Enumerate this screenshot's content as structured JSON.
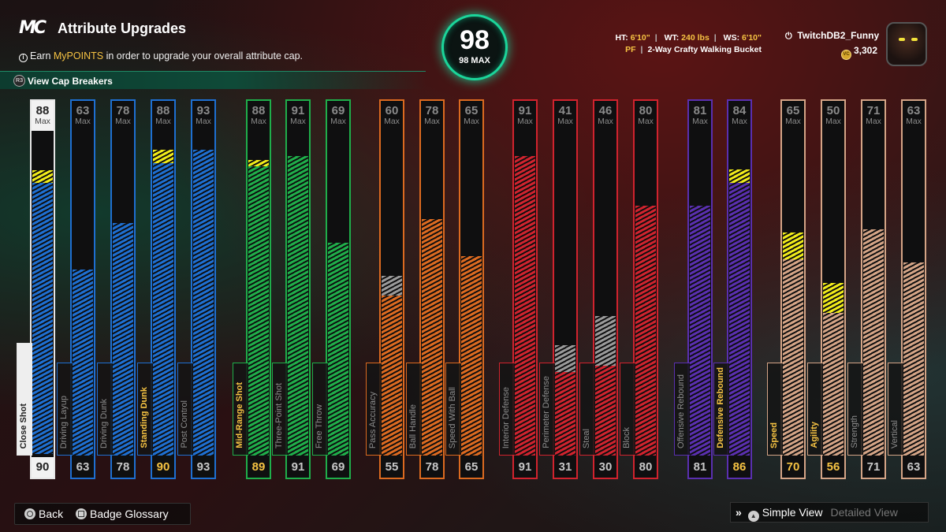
{
  "header": {
    "title": "Attribute Upgrades",
    "subtitle_prefix": "Earn ",
    "subtitle_highlight": "MyPOINTS",
    "subtitle_suffix": " in order to upgrade your overall attribute cap.",
    "cap_breakers_label": "View Cap Breakers",
    "cap_breakers_glyph": "R3"
  },
  "overall": {
    "value": "98",
    "max_label": "98 MAX"
  },
  "player": {
    "ht_label": "HT:",
    "ht": "6'10\"",
    "wt_label": "WT:",
    "wt": "240 lbs",
    "ws_label": "WS:",
    "ws": "6'10\"",
    "position": "PF",
    "archetype": "2-Way Crafty Walking Bucket",
    "gamertag": "TwitchDB2_Funny",
    "vc": "3,302",
    "vc_glyph": "VC"
  },
  "colors": {
    "finishing": "#1e6fd1",
    "shooting": "#1fae4a",
    "playmaking": "#dc6a20",
    "defense": "#d0232e",
    "rebounding": "#5a2fb0",
    "physicals": "#d4a486",
    "yellow": "#f1ec1a",
    "highlight": "#f6c343"
  },
  "attributes": [
    {
      "label": "Close Shot",
      "max": "88",
      "value": "90",
      "fill": 0.84,
      "gray": 0,
      "yel": 0.04,
      "group": "finishing",
      "selected": true
    },
    {
      "label": "Driving Layup",
      "max": "63",
      "value": "63",
      "fill": 0.56,
      "gray": 0,
      "yel": 0,
      "group": "finishing"
    },
    {
      "label": "Driving Dunk",
      "max": "78",
      "value": "78",
      "fill": 0.7,
      "gray": 0,
      "yel": 0,
      "group": "finishing"
    },
    {
      "label": "Standing Dunk",
      "max": "88",
      "value": "90",
      "fill": 0.88,
      "gray": 0,
      "yel": 0.04,
      "group": "finishing",
      "boost": true
    },
    {
      "label": "Post Control",
      "max": "93",
      "value": "93",
      "fill": 0.92,
      "gray": 0,
      "yel": 0,
      "group": "finishing"
    },
    {
      "label": "Mid-Range Shot",
      "max": "88",
      "value": "89",
      "fill": 0.87,
      "gray": 0,
      "yel": 0.02,
      "group": "shooting",
      "boost": true
    },
    {
      "label": "Three-Point Shot",
      "max": "91",
      "value": "91",
      "fill": 0.9,
      "gray": 0,
      "yel": 0,
      "group": "shooting"
    },
    {
      "label": "Free Throw",
      "max": "69",
      "value": "69",
      "fill": 0.64,
      "gray": 0,
      "yel": 0,
      "group": "shooting"
    },
    {
      "label": "Pass Accuracy",
      "max": "60",
      "value": "55",
      "fill": 0.48,
      "gray": 0.06,
      "yel": 0,
      "group": "playmaking"
    },
    {
      "label": "Ball Handle",
      "max": "78",
      "value": "78",
      "fill": 0.71,
      "gray": 0,
      "yel": 0,
      "group": "playmaking"
    },
    {
      "label": "Speed With Ball",
      "max": "65",
      "value": "65",
      "fill": 0.6,
      "gray": 0,
      "yel": 0,
      "group": "playmaking"
    },
    {
      "label": "Interior Defense",
      "max": "91",
      "value": "91",
      "fill": 0.9,
      "gray": 0,
      "yel": 0,
      "group": "defense"
    },
    {
      "label": "Perimeter Defense",
      "max": "41",
      "value": "31",
      "fill": 0.25,
      "gray": 0.08,
      "yel": 0,
      "group": "defense"
    },
    {
      "label": "Steal",
      "max": "46",
      "value": "30",
      "fill": 0.27,
      "gray": 0.15,
      "yel": 0,
      "group": "defense"
    },
    {
      "label": "Block",
      "max": "80",
      "value": "80",
      "fill": 0.75,
      "gray": 0,
      "yel": 0,
      "group": "defense"
    },
    {
      "label": "Offensive Rebound",
      "max": "81",
      "value": "81",
      "fill": 0.75,
      "gray": 0,
      "yel": 0,
      "group": "rebounding"
    },
    {
      "label": "Defensive Rebound",
      "max": "84",
      "value": "86",
      "fill": 0.82,
      "gray": 0,
      "yel": 0.04,
      "group": "rebounding",
      "boost": true
    },
    {
      "label": "Speed",
      "max": "65",
      "value": "70",
      "fill": 0.59,
      "gray": 0,
      "yel": 0.08,
      "group": "physicals",
      "boost": true
    },
    {
      "label": "Agility",
      "max": "50",
      "value": "56",
      "fill": 0.43,
      "gray": 0,
      "yel": 0.09,
      "group": "physicals",
      "boost": true
    },
    {
      "label": "Strength",
      "max": "71",
      "value": "71",
      "fill": 0.68,
      "gray": 0,
      "yel": 0,
      "group": "physicals"
    },
    {
      "label": "Vertical",
      "max": "63",
      "value": "63",
      "fill": 0.58,
      "gray": 0,
      "yel": 0,
      "group": "physicals"
    }
  ],
  "max_label": "Max",
  "footer": {
    "back_label": "Back",
    "glossary_label": "Badge Glossary",
    "simple_view_label": "Simple View",
    "detailed_view_label": "Detailed View",
    "chevrons": "»",
    "triangle": "▲"
  }
}
